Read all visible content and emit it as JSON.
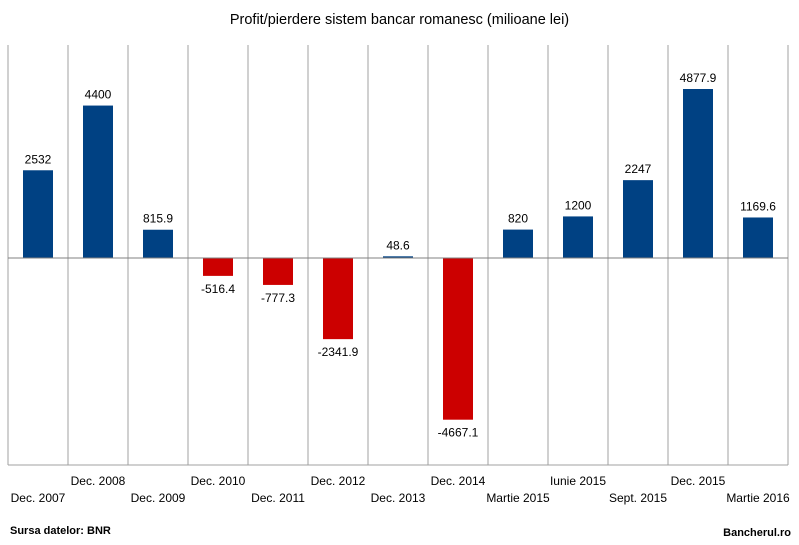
{
  "chart_data": {
    "type": "bar",
    "title": "Profit/pierdere sistem bancar romanesc (milioane lei)",
    "categories": [
      "Dec. 2007",
      "Dec. 2008",
      "Dec. 2009",
      "Dec. 2010",
      "Dec. 2011",
      "Dec. 2012",
      "Dec. 2013",
      "Dec. 2014",
      "Martie 2015",
      "Iunie 2015",
      "Sept. 2015",
      "Dec. 2015",
      "Martie 2016"
    ],
    "value_labels": [
      "2532",
      "4400",
      "815.9",
      "-516.4",
      "-777.3",
      "-2341.9",
      "48.6",
      "-4667.1",
      "820",
      "1200",
      "2247",
      "4877.9",
      "1169.6"
    ],
    "values": [
      2532,
      4400,
      815.9,
      -516.4,
      -777.3,
      -2341.9,
      48.6,
      -4667.1,
      820,
      1200,
      2247,
      4877.9,
      1169.6
    ],
    "ylim": [
      -6000,
      6000
    ],
    "colors": {
      "positive": "#004183",
      "negative": "#cc0000",
      "grid": "#a0a0a0",
      "zero_line": "#808080"
    },
    "grid": "vertical",
    "legend": "none"
  },
  "footer": {
    "source": "Sursa datelor: BNR",
    "brand": "Bancherul.ro"
  }
}
